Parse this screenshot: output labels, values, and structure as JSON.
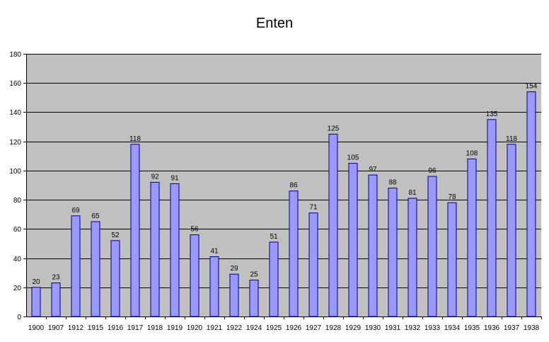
{
  "chart_data": {
    "type": "bar",
    "title": "Enten",
    "xlabel": "",
    "ylabel": "",
    "categories": [
      "1900",
      "1907",
      "1912",
      "1915",
      "1916",
      "1917",
      "1918",
      "1919",
      "1920",
      "1921",
      "1922",
      "1924",
      "1925",
      "1926",
      "1927",
      "1928",
      "1929",
      "1930",
      "1931",
      "1932",
      "1933",
      "1934",
      "1935",
      "1936",
      "1937",
      "1938"
    ],
    "values": [
      20,
      23,
      69,
      65,
      52,
      118,
      92,
      91,
      56,
      41,
      29,
      25,
      51,
      86,
      71,
      125,
      105,
      97,
      88,
      81,
      96,
      78,
      108,
      135,
      118,
      154
    ],
    "ylim": [
      0,
      180
    ],
    "yticks": [
      0,
      20,
      40,
      60,
      80,
      100,
      120,
      140,
      160,
      180
    ],
    "grid": true,
    "legend": "none",
    "data_labels": true,
    "colors": {
      "plot_background": "#c0c0c0",
      "bar_fill": "#9999ff",
      "bar_stroke": "#000080",
      "gridline": "#000000"
    }
  }
}
